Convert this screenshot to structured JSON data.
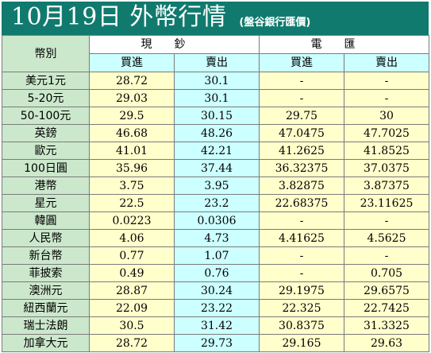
{
  "header": {
    "title": "10月19日 外幣行情",
    "subtitle": "(盤谷銀行匯價)"
  },
  "table": {
    "col_currency": "幣別",
    "group_cash": "現鈔",
    "group_wire": "電匯",
    "sub_buy": "買進",
    "sub_sell": "賣出",
    "rows": [
      {
        "name": "美元1元",
        "cash_buy": "28.72",
        "cash_sell": "30.1",
        "wire_buy": "-",
        "wire_sell": "-"
      },
      {
        "name": "5-20元",
        "cash_buy": "29.03",
        "cash_sell": "30.1",
        "wire_buy": "-",
        "wire_sell": "-"
      },
      {
        "name": "50-100元",
        "cash_buy": "29.5",
        "cash_sell": "30.15",
        "wire_buy": "29.75",
        "wire_sell": "30"
      },
      {
        "name": "英鎊",
        "cash_buy": "46.68",
        "cash_sell": "48.26",
        "wire_buy": "47.0475",
        "wire_sell": "47.7025"
      },
      {
        "name": "歐元",
        "cash_buy": "41.01",
        "cash_sell": "42.21",
        "wire_buy": "41.2625",
        "wire_sell": "41.8525"
      },
      {
        "name": "100日圓",
        "cash_buy": "35.96",
        "cash_sell": "37.44",
        "wire_buy": "36.32375",
        "wire_sell": "37.0375"
      },
      {
        "name": "港幣",
        "cash_buy": "3.75",
        "cash_sell": "3.95",
        "wire_buy": "3.82875",
        "wire_sell": "3.87375"
      },
      {
        "name": "星元",
        "cash_buy": "22.5",
        "cash_sell": "23.2",
        "wire_buy": "22.68375",
        "wire_sell": "23.11625"
      },
      {
        "name": "韓圓",
        "cash_buy": "0.0223",
        "cash_sell": "0.0306",
        "wire_buy": "-",
        "wire_sell": "-"
      },
      {
        "name": "人民幣",
        "cash_buy": "4.06",
        "cash_sell": "4.73",
        "wire_buy": "4.41625",
        "wire_sell": "4.5625"
      },
      {
        "name": "新台幣",
        "cash_buy": "0.77",
        "cash_sell": "1.07",
        "wire_buy": "-",
        "wire_sell": "-"
      },
      {
        "name": "菲披索",
        "cash_buy": "0.49",
        "cash_sell": "0.76",
        "wire_buy": "-",
        "wire_sell": "0.705"
      },
      {
        "name": "澳洲元",
        "cash_buy": "28.87",
        "cash_sell": "30.24",
        "wire_buy": "29.1975",
        "wire_sell": "29.6575"
      },
      {
        "name": "紐西蘭元",
        "cash_buy": "22.09",
        "cash_sell": "23.22",
        "wire_buy": "22.325",
        "wire_sell": "22.7425"
      },
      {
        "name": "瑞士法朗",
        "cash_buy": "30.5",
        "cash_sell": "31.42",
        "wire_buy": "30.8375",
        "wire_sell": "31.3325"
      },
      {
        "name": "加拿大元",
        "cash_buy": "28.72",
        "cash_sell": "29.73",
        "wire_buy": "29.165",
        "wire_sell": "29.63"
      }
    ]
  }
}
